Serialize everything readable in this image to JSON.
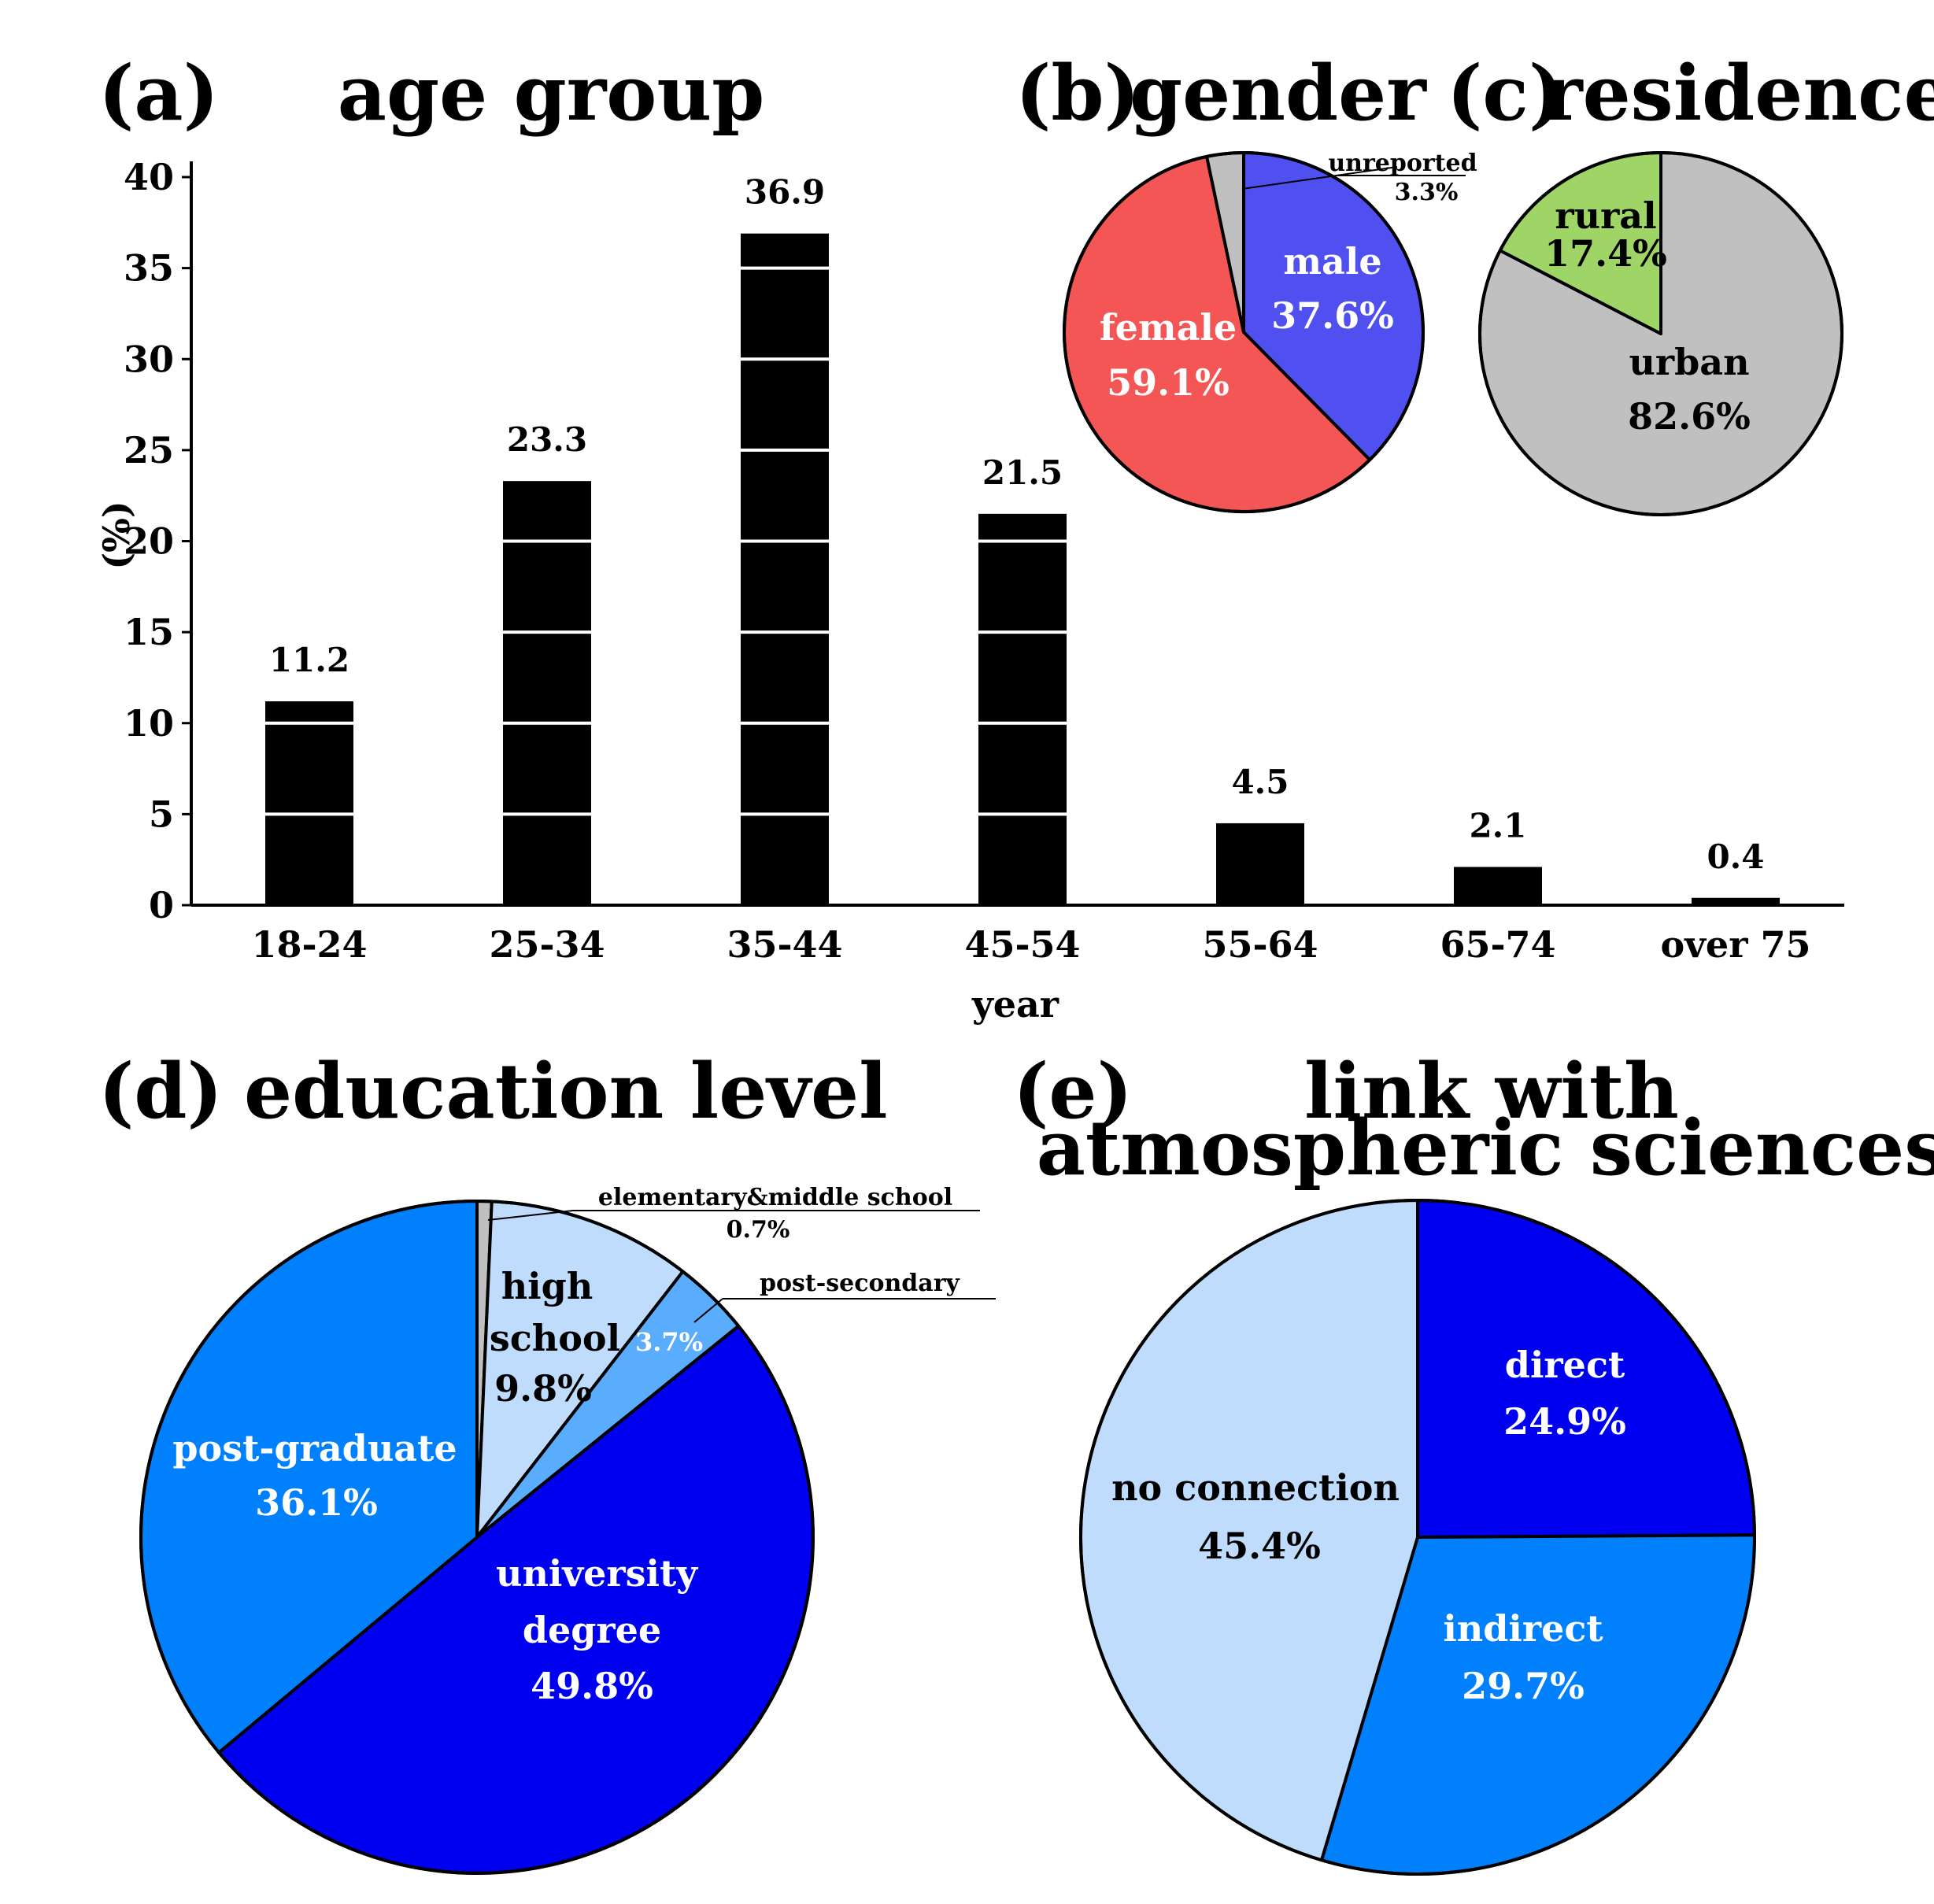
{
  "chart_data": [
    {
      "panel": "(a)",
      "type": "bar",
      "title": "age group",
      "xlabel": "year",
      "ylabel": "(%)",
      "ylim": [
        0,
        40
      ],
      "yticks": [
        0,
        5,
        10,
        15,
        20,
        25,
        30,
        35,
        40
      ],
      "categories": [
        "18-24",
        "25-34",
        "35-44",
        "45-54",
        "55-64",
        "65-74",
        "over 75"
      ],
      "values": [
        11.2,
        23.3,
        36.9,
        21.5,
        4.5,
        2.1,
        0.4
      ],
      "value_labels": [
        "11.2",
        "23.3",
        "36.9",
        "21.5",
        "4.5",
        "2.1",
        "0.4"
      ],
      "bar_color": "#000000",
      "grid": "white lines at every 5% inside bars"
    },
    {
      "panel": "(b)",
      "type": "pie",
      "title": "gender",
      "slices": [
        {
          "name": "male",
          "value": 37.6,
          "label": "37.6%",
          "color": "#5050f0"
        },
        {
          "name": "female",
          "value": 59.1,
          "label": "59.1%",
          "color": "#f45555"
        },
        {
          "name": "unreported",
          "value": 3.3,
          "label": "3.3%",
          "color": "#c0c0c0"
        }
      ]
    },
    {
      "panel": "(c)",
      "type": "pie",
      "title": "residence",
      "slices": [
        {
          "name": "urban",
          "value": 82.6,
          "label": "82.6%",
          "color": "#c0c0c0"
        },
        {
          "name": "rural",
          "value": 17.4,
          "label": "17.4%",
          "color": "#9ed566"
        }
      ]
    },
    {
      "panel": "(d)",
      "type": "pie",
      "title": "education level",
      "slices": [
        {
          "name": "elementary&middle school",
          "value": 0.7,
          "label": "0.7%",
          "color": "#c0c0c0"
        },
        {
          "name": "high school",
          "value": 9.8,
          "label": "9.8%",
          "color": "#c0dcfc"
        },
        {
          "name": "post-secondary",
          "value": 3.7,
          "label": "3.7%",
          "color": "#5aacfc"
        },
        {
          "name": "university degree",
          "value": 49.8,
          "label": "49.8%",
          "color": "#0000f0"
        },
        {
          "name": "post-graduate",
          "value": 36.1,
          "label": "36.1%",
          "color": "#0080fc"
        }
      ]
    },
    {
      "panel": "(e)",
      "type": "pie",
      "title": "link with atmospheric sciences",
      "title_lines": [
        "link with",
        "atmospheric sciences"
      ],
      "slices": [
        {
          "name": "direct",
          "value": 24.9,
          "label": "24.9%",
          "color": "#0000f0"
        },
        {
          "name": "indirect",
          "value": 29.7,
          "label": "29.7%",
          "color": "#0080fc"
        },
        {
          "name": "no connection",
          "value": 45.4,
          "label": "45.4%",
          "color": "#c0dcfc"
        }
      ]
    }
  ]
}
